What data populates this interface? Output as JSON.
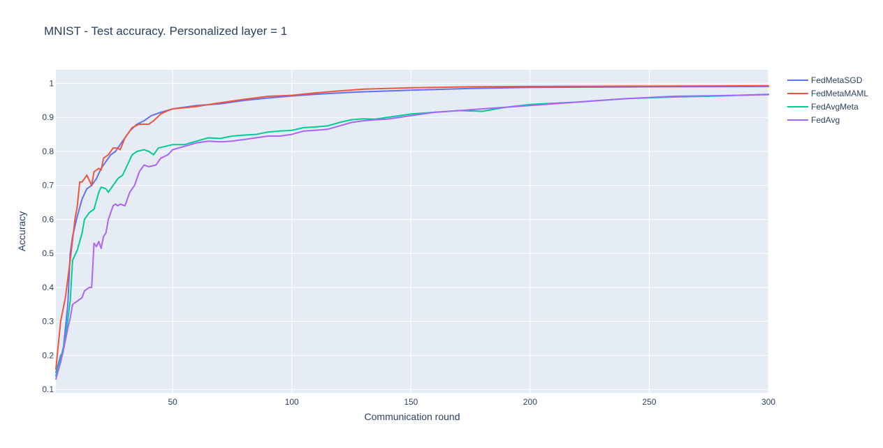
{
  "chart_data": {
    "type": "line",
    "title": "MNIST - Test accuracy. Personalized layer = 1",
    "xlabel": "Communication round",
    "ylabel": "Accuracy",
    "xlim": [
      1,
      300
    ],
    "ylim": [
      0.09,
      1.04
    ],
    "x_ticks": [
      50,
      100,
      150,
      200,
      250,
      300
    ],
    "y_ticks": [
      0.1,
      0.2,
      0.3,
      0.4,
      0.5,
      0.6,
      0.7,
      0.8,
      0.9,
      1
    ],
    "grid": true,
    "legend_position": "top-right",
    "series": [
      {
        "name": "FedMetaSGD",
        "color": "#636efa",
        "points": [
          [
            1,
            0.15
          ],
          [
            3,
            0.2
          ],
          [
            4,
            0.21
          ],
          [
            6,
            0.35
          ],
          [
            7,
            0.5
          ],
          [
            8,
            0.55
          ],
          [
            10,
            0.61
          ],
          [
            12,
            0.66
          ],
          [
            14,
            0.69
          ],
          [
            16,
            0.7
          ],
          [
            18,
            0.72
          ],
          [
            20,
            0.75
          ],
          [
            22,
            0.77
          ],
          [
            24,
            0.79
          ],
          [
            26,
            0.8
          ],
          [
            28,
            0.82
          ],
          [
            30,
            0.84
          ],
          [
            32,
            0.86
          ],
          [
            35,
            0.88
          ],
          [
            38,
            0.89
          ],
          [
            41,
            0.905
          ],
          [
            45,
            0.915
          ],
          [
            50,
            0.925
          ],
          [
            60,
            0.935
          ],
          [
            70,
            0.94
          ],
          [
            80,
            0.95
          ],
          [
            90,
            0.957
          ],
          [
            100,
            0.963
          ],
          [
            110,
            0.968
          ],
          [
            125,
            0.974
          ],
          [
            150,
            0.98
          ],
          [
            175,
            0.985
          ],
          [
            200,
            0.988
          ],
          [
            250,
            0.99
          ],
          [
            300,
            0.991
          ]
        ]
      },
      {
        "name": "FedMetaMAML",
        "color": "#ef553b",
        "points": [
          [
            1,
            0.16
          ],
          [
            3,
            0.3
          ],
          [
            5,
            0.37
          ],
          [
            7,
            0.48
          ],
          [
            9,
            0.6
          ],
          [
            10,
            0.64
          ],
          [
            11,
            0.71
          ],
          [
            12,
            0.71
          ],
          [
            13,
            0.72
          ],
          [
            14,
            0.73
          ],
          [
            16,
            0.7
          ],
          [
            17,
            0.74
          ],
          [
            18,
            0.745
          ],
          [
            19,
            0.75
          ],
          [
            20,
            0.745
          ],
          [
            21,
            0.78
          ],
          [
            23,
            0.79
          ],
          [
            25,
            0.81
          ],
          [
            27,
            0.81
          ],
          [
            28,
            0.805
          ],
          [
            30,
            0.84
          ],
          [
            33,
            0.87
          ],
          [
            36,
            0.88
          ],
          [
            38,
            0.88
          ],
          [
            40,
            0.88
          ],
          [
            42,
            0.89
          ],
          [
            45,
            0.91
          ],
          [
            48,
            0.92
          ],
          [
            50,
            0.925
          ],
          [
            60,
            0.932
          ],
          [
            70,
            0.943
          ],
          [
            80,
            0.953
          ],
          [
            90,
            0.962
          ],
          [
            100,
            0.965
          ],
          [
            110,
            0.972
          ],
          [
            120,
            0.978
          ],
          [
            130,
            0.983
          ],
          [
            150,
            0.987
          ],
          [
            175,
            0.99
          ],
          [
            200,
            0.991
          ],
          [
            250,
            0.992
          ],
          [
            300,
            0.993
          ]
        ]
      },
      {
        "name": "FedAvgMeta",
        "color": "#00cc96",
        "points": [
          [
            1,
            0.14
          ],
          [
            3,
            0.19
          ],
          [
            5,
            0.25
          ],
          [
            7,
            0.36
          ],
          [
            8,
            0.48
          ],
          [
            10,
            0.51
          ],
          [
            12,
            0.56
          ],
          [
            13,
            0.6
          ],
          [
            15,
            0.62
          ],
          [
            17,
            0.63
          ],
          [
            19,
            0.68
          ],
          [
            20,
            0.695
          ],
          [
            22,
            0.69
          ],
          [
            23,
            0.68
          ],
          [
            25,
            0.7
          ],
          [
            27,
            0.72
          ],
          [
            29,
            0.73
          ],
          [
            31,
            0.76
          ],
          [
            33,
            0.79
          ],
          [
            35,
            0.8
          ],
          [
            38,
            0.805
          ],
          [
            40,
            0.8
          ],
          [
            42,
            0.79
          ],
          [
            44,
            0.81
          ],
          [
            47,
            0.815
          ],
          [
            50,
            0.82
          ],
          [
            55,
            0.82
          ],
          [
            60,
            0.83
          ],
          [
            65,
            0.84
          ],
          [
            70,
            0.838
          ],
          [
            75,
            0.845
          ],
          [
            80,
            0.848
          ],
          [
            85,
            0.85
          ],
          [
            90,
            0.857
          ],
          [
            95,
            0.86
          ],
          [
            100,
            0.862
          ],
          [
            105,
            0.87
          ],
          [
            110,
            0.872
          ],
          [
            115,
            0.875
          ],
          [
            120,
            0.885
          ],
          [
            125,
            0.893
          ],
          [
            130,
            0.896
          ],
          [
            135,
            0.895
          ],
          [
            140,
            0.9
          ],
          [
            150,
            0.91
          ],
          [
            160,
            0.915
          ],
          [
            170,
            0.92
          ],
          [
            180,
            0.918
          ],
          [
            190,
            0.93
          ],
          [
            200,
            0.938
          ],
          [
            220,
            0.945
          ],
          [
            240,
            0.955
          ],
          [
            260,
            0.96
          ],
          [
            280,
            0.963
          ],
          [
            300,
            0.968
          ]
        ]
      },
      {
        "name": "FedAvg",
        "color": "#ab63fa",
        "points": [
          [
            1,
            0.13
          ],
          [
            3,
            0.18
          ],
          [
            4,
            0.21
          ],
          [
            6,
            0.28
          ],
          [
            7,
            0.31
          ],
          [
            8,
            0.35
          ],
          [
            10,
            0.36
          ],
          [
            12,
            0.37
          ],
          [
            13,
            0.39
          ],
          [
            15,
            0.4
          ],
          [
            16,
            0.4
          ],
          [
            17,
            0.53
          ],
          [
            18,
            0.52
          ],
          [
            19,
            0.535
          ],
          [
            20,
            0.515
          ],
          [
            21,
            0.55
          ],
          [
            22,
            0.56
          ],
          [
            23,
            0.6
          ],
          [
            24,
            0.62
          ],
          [
            25,
            0.64
          ],
          [
            26,
            0.645
          ],
          [
            27,
            0.64
          ],
          [
            28,
            0.645
          ],
          [
            30,
            0.64
          ],
          [
            31,
            0.66
          ],
          [
            32,
            0.68
          ],
          [
            34,
            0.7
          ],
          [
            36,
            0.74
          ],
          [
            38,
            0.76
          ],
          [
            40,
            0.755
          ],
          [
            43,
            0.76
          ],
          [
            45,
            0.78
          ],
          [
            48,
            0.79
          ],
          [
            50,
            0.805
          ],
          [
            55,
            0.815
          ],
          [
            60,
            0.825
          ],
          [
            65,
            0.83
          ],
          [
            70,
            0.828
          ],
          [
            75,
            0.83
          ],
          [
            80,
            0.835
          ],
          [
            85,
            0.84
          ],
          [
            90,
            0.845
          ],
          [
            95,
            0.845
          ],
          [
            100,
            0.85
          ],
          [
            105,
            0.86
          ],
          [
            110,
            0.862
          ],
          [
            115,
            0.865
          ],
          [
            120,
            0.875
          ],
          [
            125,
            0.885
          ],
          [
            130,
            0.89
          ],
          [
            135,
            0.893
          ],
          [
            140,
            0.895
          ],
          [
            150,
            0.905
          ],
          [
            160,
            0.915
          ],
          [
            170,
            0.92
          ],
          [
            180,
            0.925
          ],
          [
            190,
            0.93
          ],
          [
            200,
            0.935
          ],
          [
            220,
            0.945
          ],
          [
            240,
            0.955
          ],
          [
            260,
            0.962
          ],
          [
            280,
            0.964
          ],
          [
            300,
            0.967
          ]
        ]
      }
    ]
  }
}
